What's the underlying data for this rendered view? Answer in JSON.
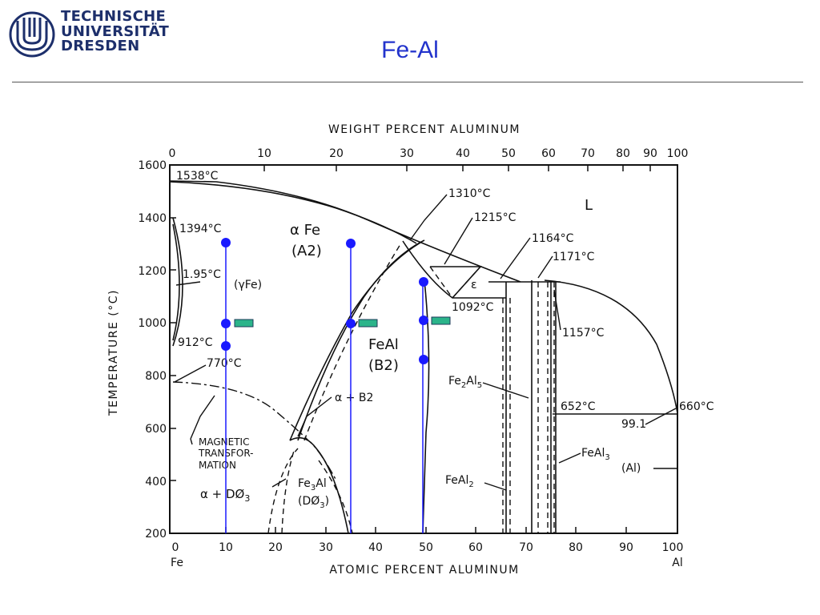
{
  "header": {
    "logo_lines": [
      "TECHNISCHE",
      "UNIVERSITÄT",
      "DRESDEN"
    ],
    "title": "Fe-Al"
  },
  "axes": {
    "top_title": "WEIGHT PERCENT ALUMINUM",
    "bottom_title": "ATOMIC PERCENT ALUMINUM",
    "left_title": "TEMPERATURE (°C)",
    "y_ticks": [
      "1600",
      "1400",
      "1200",
      "1000",
      "800",
      "600",
      "400",
      "200"
    ],
    "x_ticks": [
      "0",
      "10",
      "20",
      "30",
      "40",
      "50",
      "60",
      "70",
      "80",
      "90",
      "100"
    ],
    "top_ticks": [
      "0",
      "10",
      "20",
      "30",
      "40",
      "50",
      "60",
      "70",
      "80",
      "90",
      "100"
    ],
    "left_end": "Fe",
    "right_end": "Al"
  },
  "labels": {
    "t1538": "1538°C",
    "t1394": "1394°C",
    "t1310": "1310°C",
    "t1215": "1215°C",
    "t1164": "1164°C",
    "t1171": "1171°C",
    "t1092": "1092°C",
    "t1157": "1157°C",
    "t1195": "1.95°C",
    "gammaFe": "(γFe)",
    "t912": "912°C",
    "t770": "770°C",
    "t652": "652°C",
    "t660": "660°C",
    "v991": "99.1",
    "liquid": "L",
    "epsilon": "ε",
    "alphaB2": "α + B2",
    "alphaD03": "α + DØ",
    "sub3a": "3",
    "fe3al": "Fe",
    "fe3al_sub": "3",
    "fe3al_tail": "Al",
    "d03": "(DØ",
    "d03_sub": "3",
    "d03_tail": ")",
    "fe2al5": "Fe",
    "fe2al5_s1": "2",
    "fe2al5_m": "Al",
    "fe2al5_s2": "5",
    "feal2": "FeAl",
    "feal2_sub": "2",
    "feal3": "FeAl",
    "feal3_sub": "3",
    "al": "(Al)",
    "mag1": "MAGNETIC",
    "mag2": "TRANSFOR-",
    "mag3": "MATION",
    "alphaFe": "α Fe",
    "a2": "(A2)",
    "feal": "FeAl",
    "b2": "(B2)"
  },
  "colors": {
    "sample_lines": "#1a1aff",
    "sample_points": "#1a1aff",
    "markers": "#2bb48a"
  }
}
